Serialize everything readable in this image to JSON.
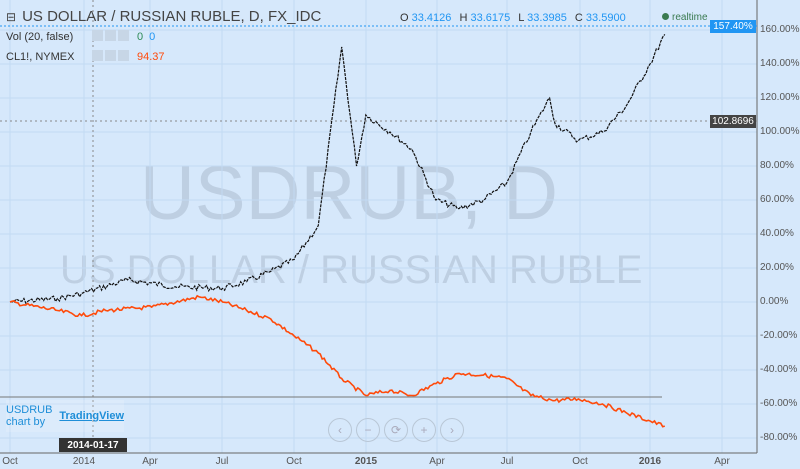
{
  "header": {
    "title": "US DOLLAR / RUSSIAN RUBLE, D, FX_IDC",
    "open_label": "O",
    "open": "33.4126",
    "high_label": "H",
    "high": "33.6175",
    "low_label": "L",
    "low": "33.3985",
    "close_label": "C",
    "close": "33.5900",
    "realtime": "realtime"
  },
  "indicators": [
    {
      "name": "Vol (20, false)",
      "values": [
        "0",
        "0"
      ]
    },
    {
      "name": "CL1!, NYMEX",
      "values": [
        "94.37"
      ]
    }
  ],
  "watermark": {
    "symbol": "USDRUB, D",
    "name": "US DOLLAR / RUSSIAN RUBLE"
  },
  "branding": {
    "text": "USDRUB chart by",
    "link": "TradingView"
  },
  "nav": {
    "left": "‹",
    "zoom_out": "−",
    "reset": "⟳",
    "zoom_in": "+",
    "right": "›"
  },
  "price_tags": {
    "last": "157.40%",
    "crosshair": "102.8696"
  },
  "crosshair_date": "2014-01-17",
  "colors": {
    "usdrub": "#111111",
    "cl1": "#ff4a0a",
    "accent": "#2196f3",
    "background": "#d6e8fb"
  },
  "chart_data": {
    "type": "line",
    "y_ticks": [
      "160.00%",
      "140.00%",
      "120.00%",
      "100.00%",
      "80.00%",
      "60.00%",
      "40.00%",
      "20.00%",
      "0.00%",
      "-20.00%",
      "-40.00%",
      "-60.00%",
      "-80.00%"
    ],
    "x_ticks": [
      "Oct",
      "2014",
      "Apr",
      "Jul",
      "Oct",
      "2015",
      "Apr",
      "Jul",
      "Oct",
      "2016",
      "Apr"
    ],
    "ylim": [
      -85,
      165
    ],
    "series": [
      {
        "name": "USDRUB",
        "points": [
          [
            "2013-10",
            0
          ],
          [
            "2013-12",
            2
          ],
          [
            "2014-01",
            5
          ],
          [
            "2014-03",
            13
          ],
          [
            "2014-05",
            9
          ],
          [
            "2014-07",
            8
          ],
          [
            "2014-08",
            12
          ],
          [
            "2014-09",
            18
          ],
          [
            "2014-10",
            25
          ],
          [
            "2014-11",
            45
          ],
          [
            "2014-12",
            150
          ],
          [
            "2014-12-20",
            80
          ],
          [
            "2015-01",
            110
          ],
          [
            "2015-02",
            100
          ],
          [
            "2015-03",
            90
          ],
          [
            "2015-04",
            60
          ],
          [
            "2015-05",
            55
          ],
          [
            "2015-06",
            60
          ],
          [
            "2015-07",
            70
          ],
          [
            "2015-08",
            100
          ],
          [
            "2015-08-25",
            120
          ],
          [
            "2015-09",
            105
          ],
          [
            "2015-10",
            95
          ],
          [
            "2015-11",
            100
          ],
          [
            "2015-12",
            115
          ],
          [
            "2016-01",
            140
          ],
          [
            "2016-01-20",
            157.4
          ]
        ]
      },
      {
        "name": "CL1!",
        "points": [
          [
            "2013-10",
            0
          ],
          [
            "2013-12",
            -5
          ],
          [
            "2014-01",
            -8
          ],
          [
            "2014-02",
            -5
          ],
          [
            "2014-04",
            -3
          ],
          [
            "2014-06",
            3
          ],
          [
            "2014-07",
            0
          ],
          [
            "2014-08",
            -5
          ],
          [
            "2014-09",
            -10
          ],
          [
            "2014-10",
            -20
          ],
          [
            "2014-11",
            -30
          ],
          [
            "2014-12",
            -45
          ],
          [
            "2015-01",
            -55
          ],
          [
            "2015-02",
            -52
          ],
          [
            "2015-03",
            -55
          ],
          [
            "2015-04",
            -48
          ],
          [
            "2015-05",
            -42
          ],
          [
            "2015-06",
            -43
          ],
          [
            "2015-07",
            -45
          ],
          [
            "2015-08",
            -55
          ],
          [
            "2015-09",
            -58
          ],
          [
            "2015-10",
            -57
          ],
          [
            "2015-11",
            -60
          ],
          [
            "2015-12",
            -65
          ],
          [
            "2016-01-20",
            -73
          ]
        ]
      }
    ]
  }
}
